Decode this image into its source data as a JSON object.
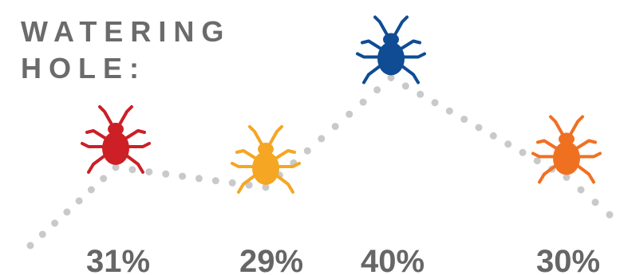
{
  "chart_data": {
    "type": "line",
    "title_lines": [
      "WATERING",
      "HOLE:"
    ],
    "values": [
      31,
      29,
      40,
      30
    ],
    "labels": [
      "31%",
      "29%",
      "40%",
      "30%"
    ],
    "marker_icon": "bug-icon",
    "colors": [
      "#cc1f26",
      "#f5a623",
      "#0f4c94",
      "#f07022"
    ],
    "line_color": "#c9c9c9",
    "line_style": "dotted",
    "grid": false,
    "legend": "none"
  }
}
